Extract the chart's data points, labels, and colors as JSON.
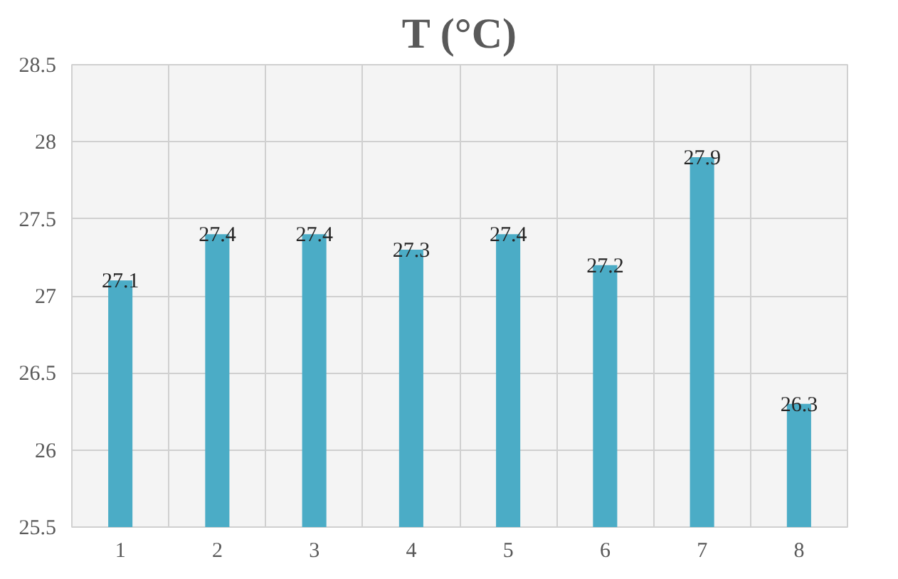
{
  "chart_data": {
    "type": "bar",
    "title": "T (°C)",
    "categories": [
      "1",
      "2",
      "3",
      "4",
      "5",
      "6",
      "7",
      "8"
    ],
    "values": [
      27.1,
      27.4,
      27.4,
      27.3,
      27.4,
      27.2,
      27.9,
      26.3
    ],
    "color": "#4bacc6",
    "ylim": [
      25.5,
      28.5
    ],
    "yticks": [
      25.5,
      26,
      26.5,
      27,
      27.5,
      28,
      28.5
    ],
    "grid": true,
    "data_labels": true
  }
}
